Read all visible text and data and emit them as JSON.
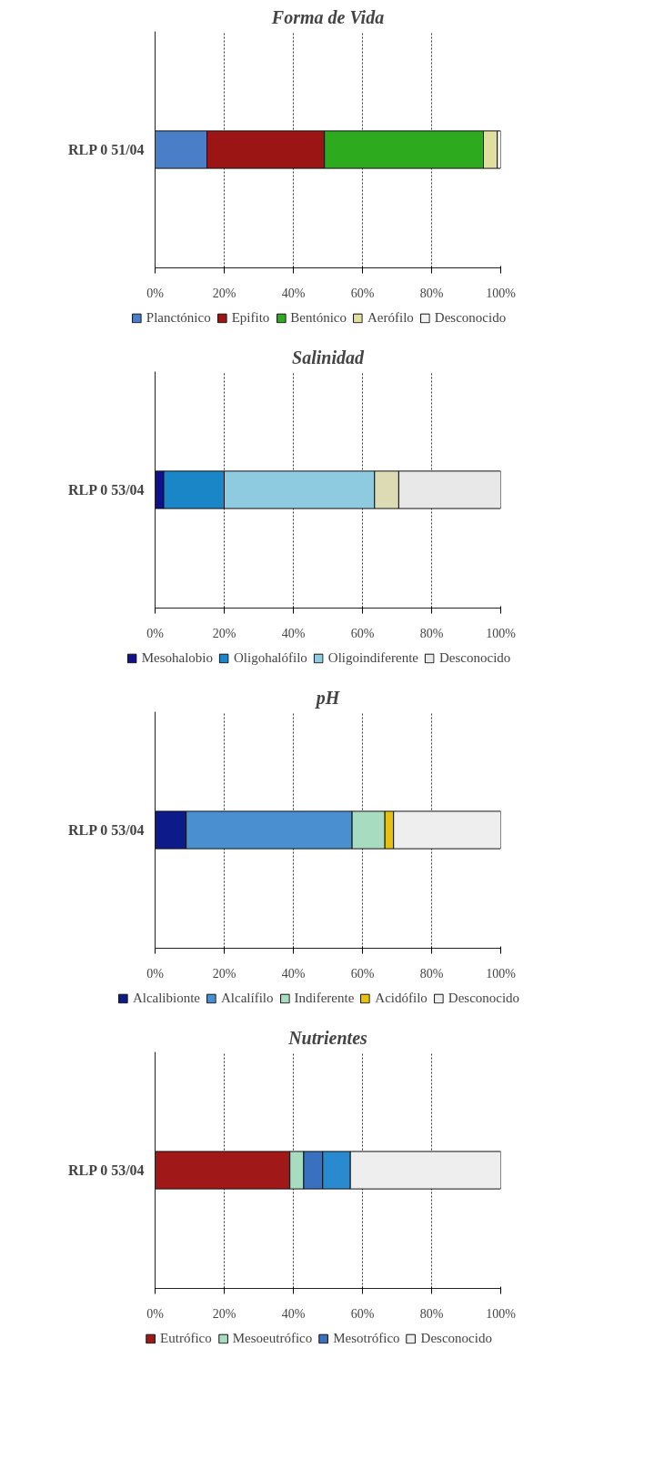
{
  "chart_data": [
    {
      "type": "bar",
      "orientation": "horizontal",
      "stacked": true,
      "title": "Forma de Vida",
      "categories": [
        "RLP 0 51/04"
      ],
      "xlim": [
        0,
        100
      ],
      "xticks": [
        {
          "value": 0,
          "label": "0%"
        },
        {
          "value": 20,
          "label": "20%"
        },
        {
          "value": 40,
          "label": "40%"
        },
        {
          "value": 60,
          "label": "60%"
        },
        {
          "value": 80,
          "label": "80%"
        },
        {
          "value": 100,
          "label": "100%"
        }
      ],
      "grid": "x",
      "legend": "bottom",
      "series": [
        {
          "name": "Planctónico",
          "color": "#4a7fc8",
          "values": [
            15
          ]
        },
        {
          "name": "Epifito",
          "color": "#9b1515",
          "values": [
            34
          ]
        },
        {
          "name": "Bentónico",
          "color": "#2eaa1e",
          "values": [
            46
          ]
        },
        {
          "name": "Aerófilo",
          "color": "#e0dfa0",
          "values": [
            4
          ]
        },
        {
          "name": "Desconocido",
          "color": "#f2f2f2",
          "values": [
            1
          ]
        }
      ]
    },
    {
      "type": "bar",
      "orientation": "horizontal",
      "stacked": true,
      "title": "Salinidad",
      "categories": [
        "RLP 0 53/04"
      ],
      "xlim": [
        0,
        100
      ],
      "xticks": [
        {
          "value": 0,
          "label": "0%"
        },
        {
          "value": 20,
          "label": "20%"
        },
        {
          "value": 40,
          "label": "40%"
        },
        {
          "value": 60,
          "label": "60%"
        },
        {
          "value": 80,
          "label": "80%"
        },
        {
          "value": 100,
          "label": "100%"
        }
      ],
      "grid": "x",
      "legend": "bottom",
      "series": [
        {
          "name": "Mesohalobio",
          "color": "#10108a",
          "values": [
            2.5
          ]
        },
        {
          "name": "Oligohalófilo",
          "color": "#1a86c8",
          "values": [
            17.5
          ]
        },
        {
          "name": "Oligoindiferente",
          "color": "#8fcbe0",
          "values": [
            43.5
          ]
        },
        {
          "color": "#dcdcb4",
          "values": [
            7
          ]
        },
        {
          "name": "Desconocido",
          "color": "#e8e8e8",
          "values": [
            29.5
          ]
        }
      ]
    },
    {
      "type": "bar",
      "orientation": "horizontal",
      "stacked": true,
      "title": "pH",
      "categories": [
        "RLP 0 53/04"
      ],
      "xlim": [
        0,
        100
      ],
      "xticks": [
        {
          "value": 0,
          "label": "0%"
        },
        {
          "value": 20,
          "label": "20%"
        },
        {
          "value": 40,
          "label": "40%"
        },
        {
          "value": 60,
          "label": "60%"
        },
        {
          "value": 80,
          "label": "80%"
        },
        {
          "value": 100,
          "label": "100%"
        }
      ],
      "grid": "x",
      "legend": "bottom",
      "series": [
        {
          "name": "Alcalibionte",
          "color": "#0c1a8a",
          "values": [
            9
          ]
        },
        {
          "name": "Alcalífilo",
          "color": "#4a90d0",
          "values": [
            48
          ]
        },
        {
          "name": "Indiferente",
          "color": "#a8dcc0",
          "values": [
            9.5
          ]
        },
        {
          "name": "Acidófilo",
          "color": "#e8c010",
          "values": [
            2.5
          ]
        },
        {
          "name": "Desconocido",
          "color": "#eeeeee",
          "values": [
            31
          ]
        }
      ]
    },
    {
      "type": "bar",
      "orientation": "horizontal",
      "stacked": true,
      "title": "Nutrientes",
      "categories": [
        "RLP 0 53/04"
      ],
      "xlim": [
        0,
        100
      ],
      "xticks": [
        {
          "value": 0,
          "label": "0%"
        },
        {
          "value": 20,
          "label": "20%"
        },
        {
          "value": 40,
          "label": "40%"
        },
        {
          "value": 60,
          "label": "60%"
        },
        {
          "value": 80,
          "label": "80%"
        },
        {
          "value": 100,
          "label": "100%"
        }
      ],
      "grid": "x",
      "legend": "bottom",
      "series": [
        {
          "name": "Eutrófico",
          "color": "#a01818",
          "values": [
            39
          ]
        },
        {
          "name": "Mesoeutrófico",
          "color": "#a8dcc0",
          "values": [
            4
          ]
        },
        {
          "name": "Mesotrófico",
          "color": "#3a70c0",
          "values": [
            5.5
          ]
        },
        {
          "color": "#2a8ad0",
          "values": [
            8
          ]
        },
        {
          "name": "Desconocido",
          "color": "#eeeeee",
          "values": [
            43.5
          ]
        }
      ]
    }
  ]
}
